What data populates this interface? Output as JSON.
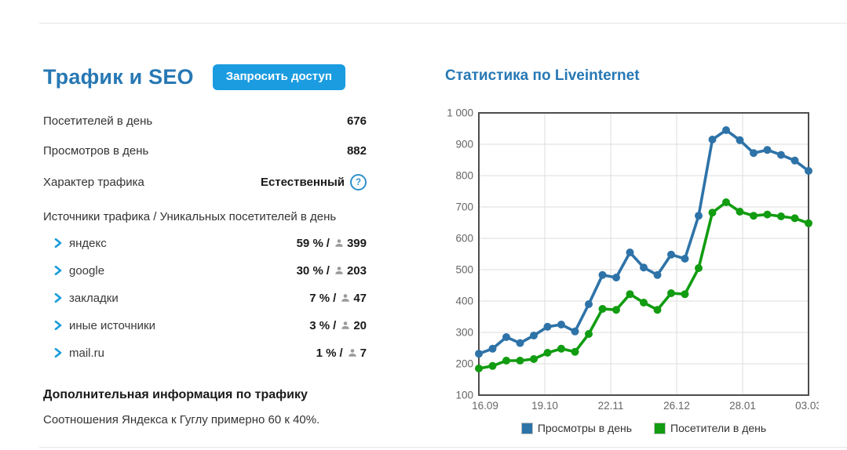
{
  "left": {
    "title": "Трафик и SEO",
    "request_button": "Запросить доступ",
    "stats": [
      {
        "label": "Посетителей в день",
        "value": "676"
      },
      {
        "label": "Просмотров в день",
        "value": "882"
      }
    ],
    "traffic_nature": {
      "label": "Характер трафика",
      "value": "Естественный",
      "help_icon": "?"
    },
    "sources": {
      "header": "Источники трафика / Уникальных посетителей в день",
      "separator": "/",
      "items": [
        {
          "name": "яндекс",
          "percent": "59 %",
          "visitors": "399"
        },
        {
          "name": "google",
          "percent": "30 %",
          "visitors": "203"
        },
        {
          "name": "закладки",
          "percent": "7 %",
          "visitors": "47"
        },
        {
          "name": "иные источники",
          "percent": "3 %",
          "visitors": "20"
        },
        {
          "name": "mail.ru",
          "percent": "1 %",
          "visitors": "7"
        }
      ]
    },
    "extra": {
      "header": "Дополнительная информация по трафику",
      "text": "Соотношения Яндекса к Гуглу примерно 60 к 40%."
    }
  },
  "right": {
    "title": "Статистика по Liveinternet"
  },
  "chart_data": {
    "type": "line",
    "title": "Статистика по Liveinternet",
    "ylim": [
      100,
      1000
    ],
    "grid": true,
    "legend_position": "bottom",
    "y_ticks": [
      100,
      200,
      300,
      400,
      500,
      600,
      700,
      800,
      900,
      1000
    ],
    "y_tick_labels": [
      "100",
      "200",
      "300",
      "400",
      "500",
      "600",
      "700",
      "800",
      "900",
      "1 000"
    ],
    "x_tick_labels": [
      "16.09",
      "19.10",
      "22.11",
      "26.12",
      "28.01",
      "03.03"
    ],
    "series": [
      {
        "name": "Просмотры в день",
        "color": "#2e73a8",
        "values": [
          232,
          248,
          285,
          266,
          290,
          318,
          325,
          303,
          390,
          483,
          475,
          555,
          507,
          483,
          548,
          535,
          672,
          915,
          945,
          913,
          872,
          882,
          866,
          848,
          815
        ]
      },
      {
        "name": "Посетители в день",
        "color": "#119c11",
        "values": [
          185,
          193,
          210,
          210,
          215,
          235,
          248,
          238,
          295,
          375,
          372,
          422,
          395,
          372,
          425,
          422,
          505,
          682,
          715,
          685,
          672,
          676,
          670,
          664,
          648
        ]
      }
    ]
  }
}
